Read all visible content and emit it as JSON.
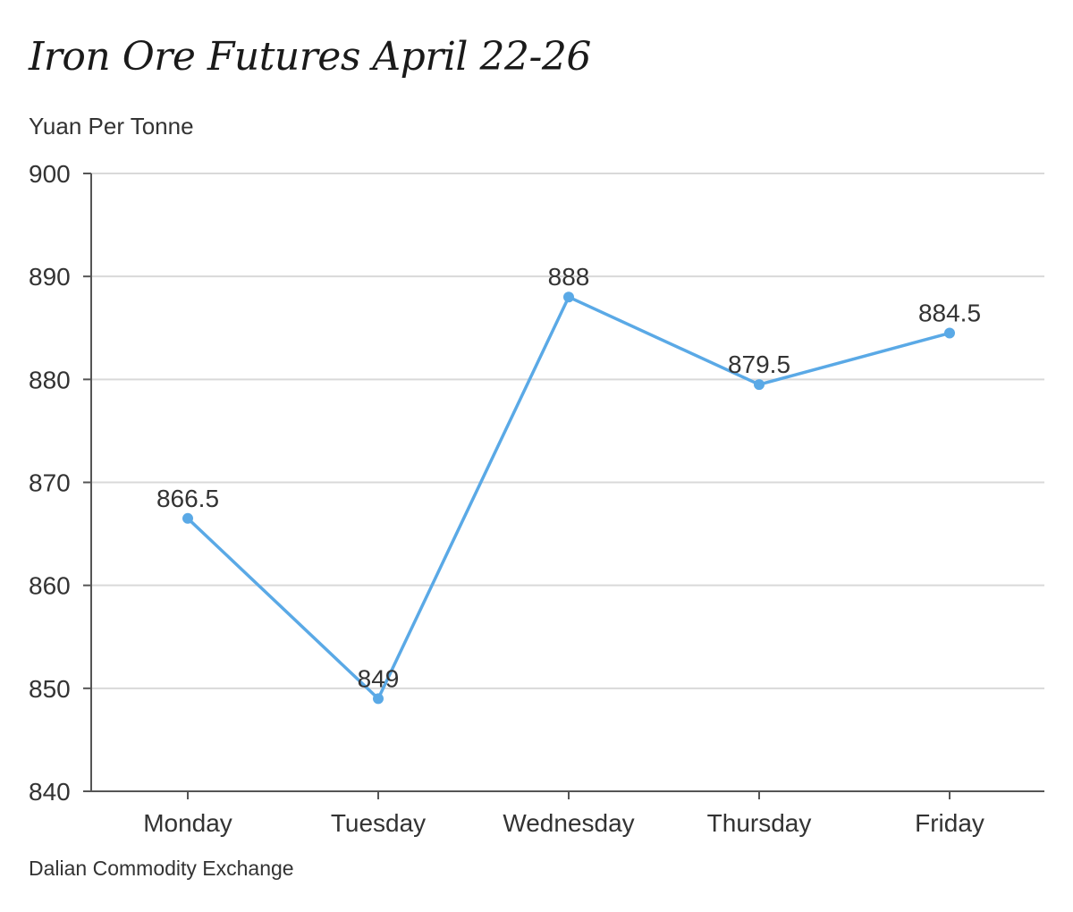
{
  "chart_data": {
    "type": "line",
    "title": "Iron Ore Futures April 22-26",
    "ylabel": "Yuan Per Tonne",
    "xlabel": "",
    "source": "Dalian Commodity Exchange",
    "categories": [
      "Monday",
      "Tuesday",
      "Wednesday",
      "Thursday",
      "Friday"
    ],
    "values": [
      866.5,
      849,
      888,
      879.5,
      884.5
    ],
    "data_labels": [
      "866.5",
      "849",
      "888",
      "879.5",
      "884.5"
    ],
    "ylim": [
      840,
      900
    ],
    "yticks": [
      840,
      850,
      860,
      870,
      880,
      890,
      900
    ],
    "grid": true,
    "line_color": "#5aa9e6",
    "grid_color": "#d9d9d9",
    "axis_color": "#555555"
  }
}
